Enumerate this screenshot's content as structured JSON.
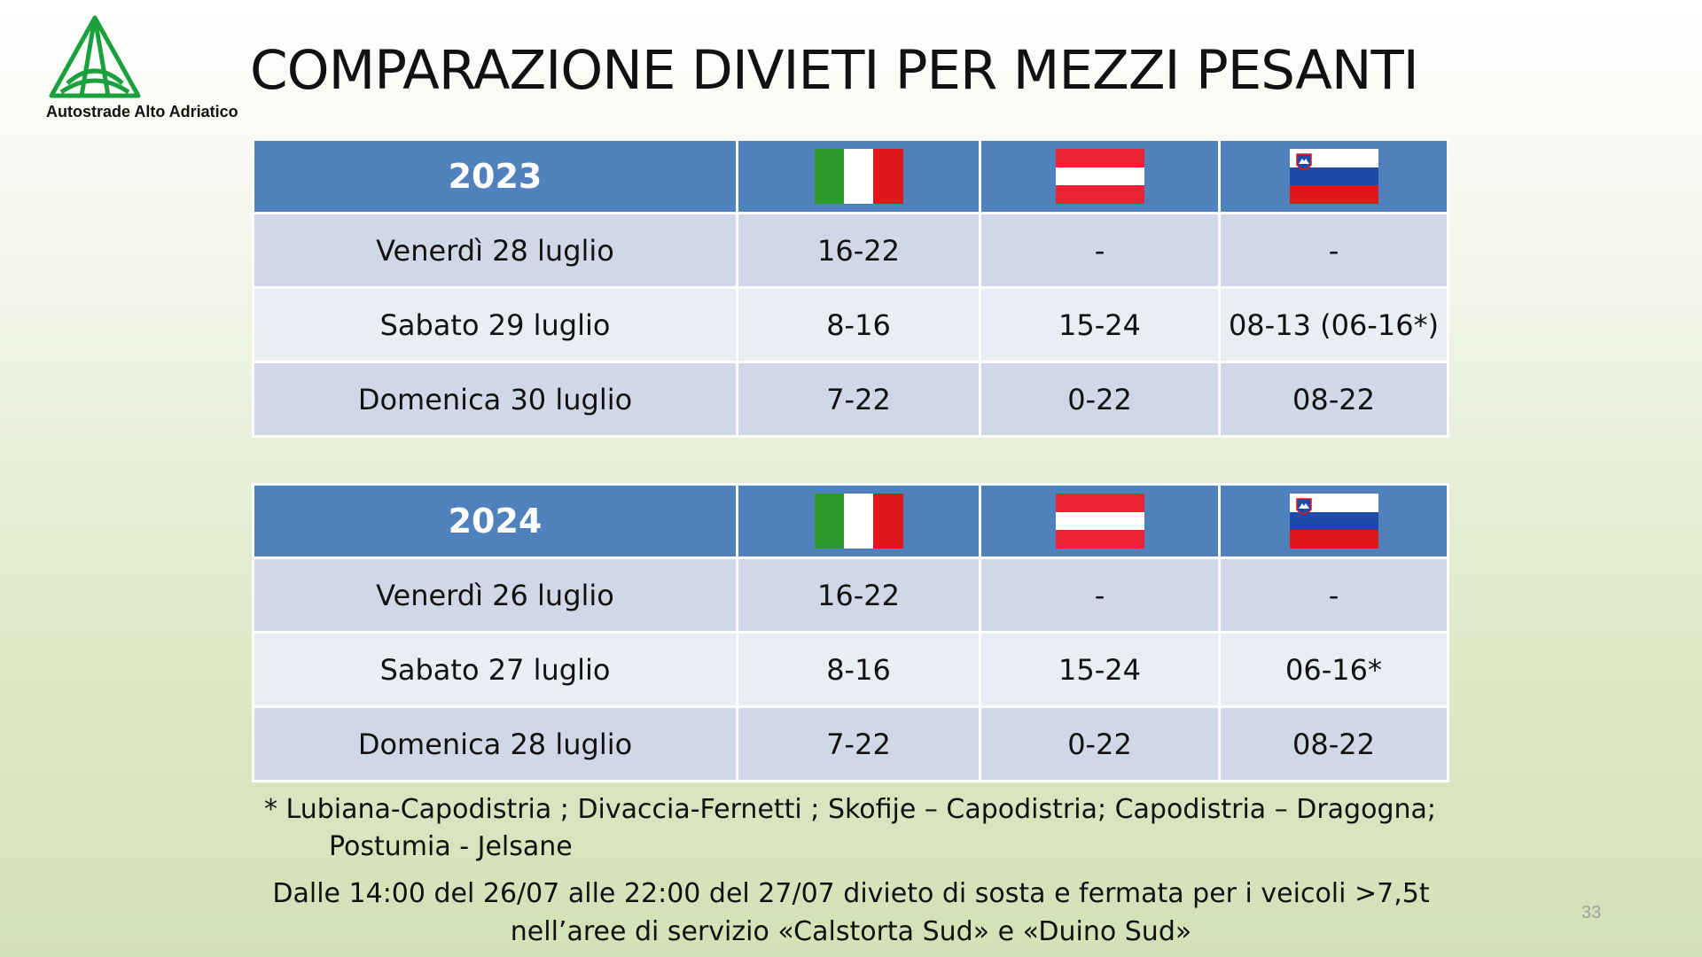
{
  "logo": {
    "text": "Autostrade Alto Adriatico",
    "color": "#1aa03c"
  },
  "title": "COMPARAZIONE DIVIETI PER MEZZI PESANTI",
  "flags": {
    "italy": {
      "colors": [
        "#2e9a2c",
        "#ffffff",
        "#e0161b"
      ]
    },
    "austria": {
      "colors": [
        "#ee2230",
        "#ffffff",
        "#ee2230"
      ]
    },
    "slovenia": {
      "colors": [
        "#ffffff",
        "#1e49a8",
        "#e0161b"
      ]
    }
  },
  "tables": [
    {
      "year": "2023",
      "rows": [
        {
          "day": "Venerdì 28 luglio",
          "it": "16-22",
          "at": "-",
          "si": "-"
        },
        {
          "day": "Sabato 29 luglio",
          "it": "8-16",
          "at": "15-24",
          "si": "08-13 (06-16*)"
        },
        {
          "day": "Domenica 30 luglio",
          "it": "7-22",
          "at": "0-22",
          "si": "08-22"
        }
      ]
    },
    {
      "year": "2024",
      "rows": [
        {
          "day": "Venerdì 26 luglio",
          "it": "16-22",
          "at": "-",
          "si": "-"
        },
        {
          "day": "Sabato 27 luglio",
          "it": "8-16",
          "at": "15-24",
          "si": "06-16*"
        },
        {
          "day": "Domenica 28 luglio",
          "it": "7-22",
          "at": "0-22",
          "si": "08-22"
        }
      ]
    }
  ],
  "footnote": {
    "line1": "* Lubiana-Capodistria ;  Divaccia-Fernetti ; Skofije – Capodistria; Capodistria – Dragogna;",
    "line2": "Postumia - Jelsane"
  },
  "note": {
    "line1": "Dalle 14:00 del 26/07 alle 22:00 del 27/07 divieto di sosta e fermata per i veicoli >7,5t",
    "line2": "nell’aree di servizio «Calstorta Sud» e «Duino Sud»"
  },
  "page_number": "33",
  "colors": {
    "header": "#4f81bd",
    "row_dark": "#d0d8e8",
    "row_light": "#e9edf4"
  }
}
